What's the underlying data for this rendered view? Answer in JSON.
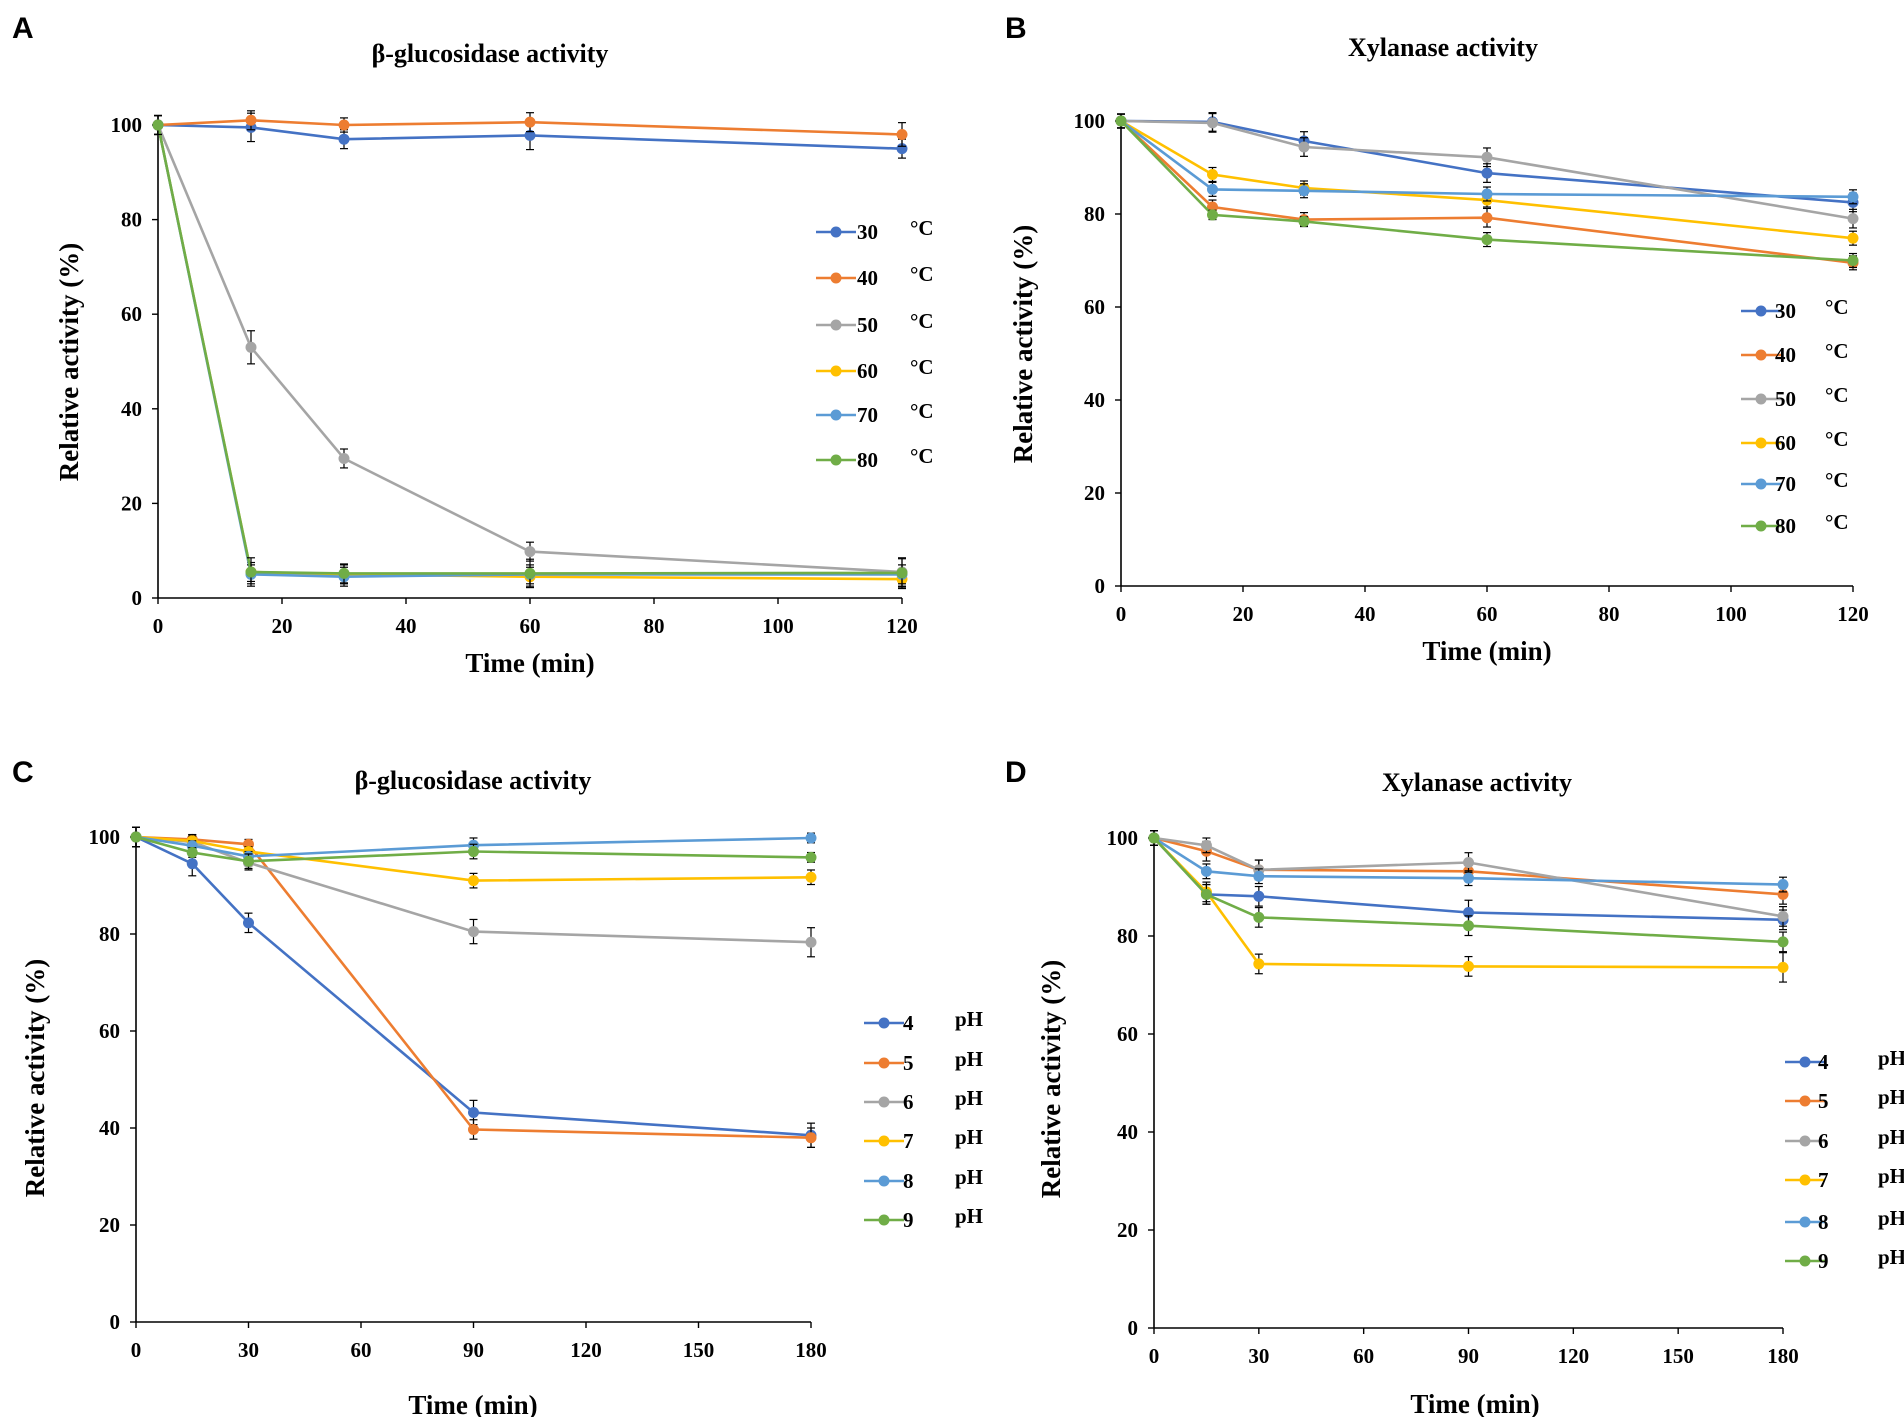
{
  "figure": {
    "panels": [
      {
        "letter": "A",
        "unit_label": "°C"
      },
      {
        "letter": "B",
        "unit_label": "°C"
      },
      {
        "letter": "C",
        "unit_label": "pH"
      },
      {
        "letter": "D",
        "unit_label": "pH"
      }
    ]
  },
  "chart_data": [
    {
      "type": "line",
      "title": "β-glucosidase activity",
      "xlabel": "Time (min)",
      "ylabel": "Relative activity (%)",
      "xlim": [
        0,
        120
      ],
      "ylim": [
        0,
        100
      ],
      "xticks": [
        0,
        20,
        40,
        60,
        80,
        100,
        120
      ],
      "yticks": [
        0,
        20,
        40,
        60,
        80,
        100
      ],
      "x": [
        0,
        15,
        30,
        60,
        120
      ],
      "series": [
        {
          "name": "30",
          "color": "#4472C4",
          "values": [
            100,
            99.5,
            97,
            97.8,
            95
          ],
          "err": [
            2,
            3,
            2,
            3,
            2
          ]
        },
        {
          "name": "40",
          "color": "#ED7D31",
          "values": [
            100,
            101,
            100,
            100.6,
            98
          ],
          "err": [
            2,
            2,
            1.5,
            2,
            2.5
          ]
        },
        {
          "name": "50",
          "color": "#A5A5A5",
          "values": [
            100,
            53,
            29.5,
            9.8,
            5.5
          ],
          "err": [
            2,
            3.5,
            2,
            2,
            3
          ]
        },
        {
          "name": "60",
          "color": "#FFC000",
          "values": [
            100,
            5.5,
            5,
            4.5,
            4
          ],
          "err": [
            2,
            2,
            2,
            2,
            2
          ]
        },
        {
          "name": "70",
          "color": "#5B9BD5",
          "values": [
            100,
            5,
            4.5,
            5,
            5
          ],
          "err": [
            2,
            2,
            2,
            2,
            2
          ]
        },
        {
          "name": "80",
          "color": "#70AD47",
          "values": [
            100,
            5.5,
            5.2,
            5.2,
            5.3
          ],
          "err": [
            2,
            3,
            2,
            3,
            3
          ]
        }
      ]
    },
    {
      "type": "line",
      "title": "Xylanase activity",
      "xlabel": "Time (min)",
      "ylabel": "Relative activity (%)",
      "xlim": [
        0,
        120
      ],
      "ylim": [
        0,
        100
      ],
      "xticks": [
        0,
        20,
        40,
        60,
        80,
        100,
        120
      ],
      "yticks": [
        0,
        20,
        40,
        60,
        80,
        100
      ],
      "x": [
        0,
        15,
        30,
        60,
        120
      ],
      "series": [
        {
          "name": "30",
          "color": "#4472C4",
          "values": [
            100,
            99.8,
            95.7,
            88.8,
            82.5
          ],
          "err": [
            1.5,
            2,
            2,
            2,
            2
          ]
        },
        {
          "name": "40",
          "color": "#ED7D31",
          "values": [
            100,
            81.5,
            78.8,
            79.2,
            69.5
          ],
          "err": [
            1.5,
            1.5,
            1.5,
            2,
            1.5
          ]
        },
        {
          "name": "50",
          "color": "#A5A5A5",
          "values": [
            100,
            99.6,
            94.4,
            92.2,
            79
          ],
          "err": [
            1.5,
            2,
            2,
            2,
            2
          ]
        },
        {
          "name": "60",
          "color": "#FFC000",
          "values": [
            100,
            88.5,
            85.6,
            83,
            74.8
          ],
          "err": [
            1.5,
            1.5,
            1.5,
            1.5,
            1.5
          ]
        },
        {
          "name": "70",
          "color": "#5B9BD5",
          "values": [
            100,
            85.3,
            85,
            84.3,
            83.7
          ],
          "err": [
            1.5,
            1.5,
            1.5,
            1.5,
            1.5
          ]
        },
        {
          "name": "80",
          "color": "#70AD47",
          "values": [
            100,
            79.8,
            78.4,
            74.5,
            70
          ],
          "err": [
            1.5,
            1,
            1,
            1.5,
            1.5
          ]
        }
      ]
    },
    {
      "type": "line",
      "title": "β-glucosidase activity",
      "xlabel": "Time (min)",
      "ylabel": "Relative activity (%)",
      "xlim": [
        0,
        180
      ],
      "ylim": [
        0,
        100
      ],
      "xticks": [
        0,
        30,
        60,
        90,
        120,
        150,
        180
      ],
      "yticks": [
        0,
        20,
        40,
        60,
        80,
        100
      ],
      "x": [
        0,
        15,
        30,
        90,
        180
      ],
      "series": [
        {
          "name": "4",
          "color": "#4472C4",
          "values": [
            100,
            94.5,
            82.3,
            43.2,
            38.5
          ],
          "err": [
            2,
            2.5,
            2,
            2.5,
            2.5
          ]
        },
        {
          "name": "5",
          "color": "#ED7D31",
          "values": [
            100,
            99.5,
            98.5,
            39.7,
            38
          ],
          "err": [
            2,
            1,
            1,
            2,
            2
          ]
        },
        {
          "name": "6",
          "color": "#A5A5A5",
          "values": [
            100,
            99,
            94.7,
            80.5,
            78.3
          ],
          "err": [
            2,
            1.5,
            1.5,
            2.5,
            3
          ]
        },
        {
          "name": "7",
          "color": "#FFC000",
          "values": [
            100,
            99.2,
            97,
            91,
            91.7
          ],
          "err": [
            2,
            1,
            1,
            1.5,
            1.5
          ]
        },
        {
          "name": "8",
          "color": "#5B9BD5",
          "values": [
            100,
            98.2,
            96,
            98.3,
            99.8
          ],
          "err": [
            2,
            1,
            1,
            1.5,
            1
          ]
        },
        {
          "name": "9",
          "color": "#70AD47",
          "values": [
            100,
            96.8,
            95,
            97,
            95.8
          ],
          "err": [
            2,
            1,
            1.5,
            1.5,
            1
          ]
        }
      ]
    },
    {
      "type": "line",
      "title": "Xylanase activity",
      "xlabel": "Time (min)",
      "ylabel": "Relative activity (%)",
      "xlim": [
        0,
        180
      ],
      "ylim": [
        0,
        100
      ],
      "xticks": [
        0,
        30,
        60,
        90,
        120,
        150,
        180
      ],
      "yticks": [
        0,
        20,
        40,
        60,
        80,
        100
      ],
      "x": [
        0,
        15,
        30,
        90,
        180
      ],
      "series": [
        {
          "name": "4",
          "color": "#4472C4",
          "values": [
            100,
            88.5,
            88.1,
            84.8,
            83.3
          ],
          "err": [
            1.5,
            2,
            2,
            2.5,
            2
          ]
        },
        {
          "name": "5",
          "color": "#ED7D31",
          "values": [
            100,
            97.3,
            93.5,
            93.2,
            88.5
          ],
          "err": [
            1.5,
            2,
            2,
            2,
            2
          ]
        },
        {
          "name": "6",
          "color": "#A5A5A5",
          "values": [
            100,
            98.5,
            93.5,
            95,
            84
          ],
          "err": [
            1.5,
            1.5,
            2,
            2,
            2
          ]
        },
        {
          "name": "7",
          "color": "#FFC000",
          "values": [
            100,
            89,
            74.3,
            73.8,
            73.6
          ],
          "err": [
            1.5,
            2,
            2,
            2,
            3
          ]
        },
        {
          "name": "8",
          "color": "#5B9BD5",
          "values": [
            100,
            93.2,
            92.2,
            91.8,
            90.5
          ],
          "err": [
            1.5,
            1.5,
            1.5,
            1.5,
            1.5
          ]
        },
        {
          "name": "9",
          "color": "#70AD47",
          "values": [
            100,
            88.5,
            83.8,
            82.1,
            78.8
          ],
          "err": [
            1.5,
            2,
            2,
            2,
            2
          ]
        }
      ]
    }
  ]
}
